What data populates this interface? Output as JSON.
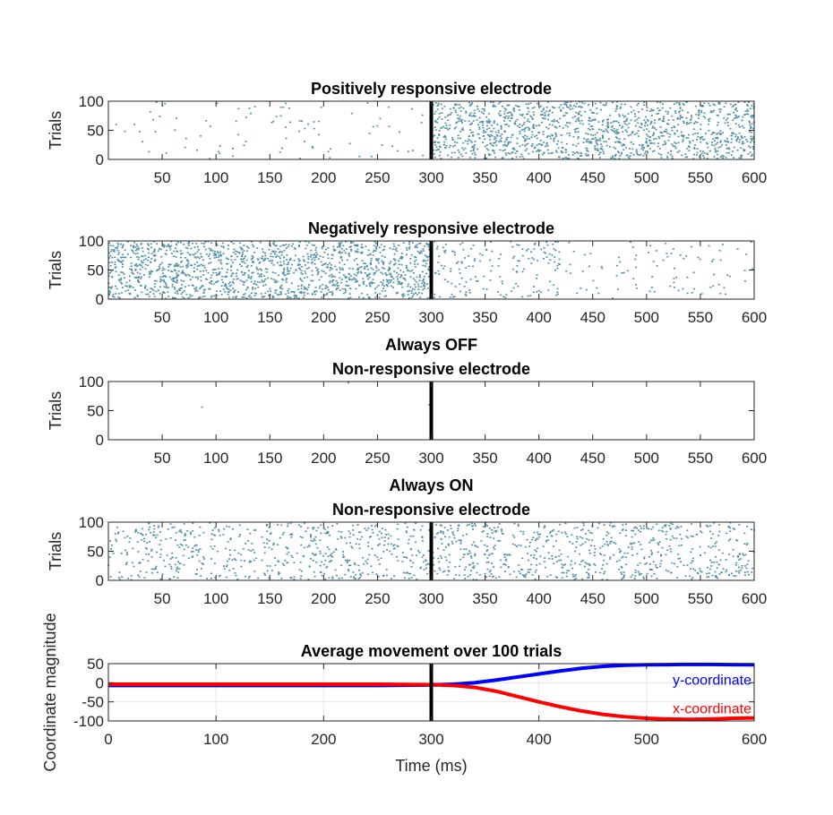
{
  "figure": {
    "background": "#ffffff",
    "raster_dot_color": "#4f8fa8",
    "stimulus_line_color": "#000000"
  },
  "chart_data": [
    {
      "type": "scatter",
      "kind": "raster",
      "title_lines": [
        "Positively responsive electrode"
      ],
      "xlabel": "",
      "ylabel": "Trials",
      "xlim": [
        0,
        600
      ],
      "ylim": [
        0,
        100
      ],
      "x_ticks": [
        50,
        100,
        150,
        200,
        250,
        300,
        350,
        400,
        450,
        500,
        550,
        600
      ],
      "y_ticks": [
        0,
        50,
        100
      ],
      "grid": false,
      "stimulus_x": 300,
      "spike_density": [
        {
          "x_range": [
            0,
            300
          ],
          "spikes_per_ms": 0.3
        },
        {
          "x_range": [
            300,
            600
          ],
          "spikes_per_ms": 4.5
        }
      ]
    },
    {
      "type": "scatter",
      "kind": "raster",
      "title_lines": [
        "Negatively responsive electrode"
      ],
      "xlabel": "",
      "ylabel": "Trials",
      "xlim": [
        0,
        600
      ],
      "ylim": [
        0,
        100
      ],
      "x_ticks": [
        50,
        100,
        150,
        200,
        250,
        300,
        350,
        400,
        450,
        500,
        550,
        600
      ],
      "y_ticks": [
        0,
        50,
        100
      ],
      "grid": false,
      "stimulus_x": 300,
      "spike_density": [
        {
          "x_range": [
            0,
            300
          ],
          "spikes_per_ms": 5
        },
        {
          "x_range": [
            300,
            420
          ],
          "spikes_per_ms": 1.4
        },
        {
          "x_range": [
            420,
            600
          ],
          "spikes_per_ms": 0.5
        }
      ]
    },
    {
      "type": "scatter",
      "kind": "raster",
      "title_lines": [
        "Always OFF",
        "Non-responsive electrode"
      ],
      "xlabel": "",
      "ylabel": "Trials",
      "xlim": [
        0,
        600
      ],
      "ylim": [
        0,
        100
      ],
      "x_ticks": [
        50,
        100,
        150,
        200,
        250,
        300,
        350,
        400,
        450,
        500,
        550,
        600
      ],
      "y_ticks": [
        0,
        50,
        100
      ],
      "grid": false,
      "stimulus_x": 300,
      "spikes": [
        {
          "x": 87,
          "y": 56
        },
        {
          "x": 223,
          "y": 98
        },
        {
          "x": 298,
          "y": 60
        }
      ]
    },
    {
      "type": "scatter",
      "kind": "raster",
      "title_lines": [
        "Always ON",
        "Non-responsive electrode"
      ],
      "xlabel": "",
      "ylabel": "Trials",
      "xlim": [
        0,
        600
      ],
      "ylim": [
        0,
        100
      ],
      "x_ticks": [
        50,
        100,
        150,
        200,
        250,
        300,
        350,
        400,
        450,
        500,
        550,
        600
      ],
      "y_ticks": [
        0,
        50,
        100
      ],
      "grid": false,
      "stimulus_x": 300,
      "spike_density": [
        {
          "x_range": [
            0,
            600
          ],
          "spikes_per_ms": 2.2
        }
      ]
    },
    {
      "type": "line",
      "title_lines": [
        "Average movement over 100 trials"
      ],
      "xlabel": "Time (ms)",
      "ylabel": "Coordinate magnitude",
      "xlim": [
        0,
        600
      ],
      "ylim": [
        -100,
        50
      ],
      "x_ticks": [
        0,
        100,
        200,
        300,
        400,
        500,
        600
      ],
      "y_ticks": [
        -100,
        -50,
        0,
        50
      ],
      "grid": true,
      "stimulus_x": 300,
      "legend_placement": "inline-right",
      "series": [
        {
          "name": "y-coordinate",
          "color": "#0000ff",
          "x": [
            0,
            100,
            200,
            250,
            300,
            320,
            340,
            360,
            380,
            400,
            420,
            440,
            460,
            480,
            500,
            520,
            540,
            560,
            580,
            600
          ],
          "y": [
            -7,
            -7,
            -7,
            -7,
            -6,
            -4,
            0,
            7,
            15,
            23,
            31,
            38,
            43,
            46,
            47,
            47.5,
            48,
            48,
            47.5,
            47
          ]
        },
        {
          "name": "x-coordinate",
          "color": "#ff0000",
          "x": [
            0,
            100,
            200,
            250,
            300,
            320,
            340,
            360,
            380,
            400,
            420,
            440,
            460,
            480,
            500,
            520,
            540,
            560,
            580,
            600
          ],
          "y": [
            -4,
            -4,
            -4,
            -4,
            -5,
            -7,
            -12,
            -22,
            -36,
            -50,
            -63,
            -74,
            -83,
            -89,
            -93,
            -95,
            -96,
            -95,
            -93,
            -92
          ]
        }
      ]
    }
  ]
}
